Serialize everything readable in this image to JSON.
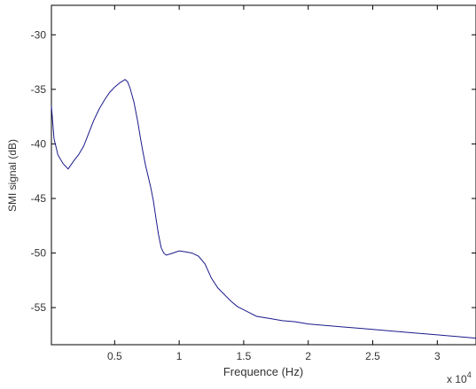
{
  "chart_data": {
    "type": "line",
    "title": "",
    "xlabel": "Frequence (Hz)",
    "ylabel": "SMI signal (dB)",
    "x_multiplier_label": "x 10",
    "x_multiplier_exponent": "4",
    "xlim": [
      0.01,
      3.3
    ],
    "ylim": [
      -58.4,
      -27.3
    ],
    "grid": false,
    "legend": "none",
    "line_color": "#1a1a8c",
    "x_ticks": [
      {
        "value": 0.5,
        "label": "0.5"
      },
      {
        "value": 1,
        "label": "1"
      },
      {
        "value": 1.5,
        "label": "1.5"
      },
      {
        "value": 2,
        "label": "2"
      },
      {
        "value": 2.5,
        "label": "2.5"
      },
      {
        "value": 3,
        "label": "3"
      }
    ],
    "y_ticks": [
      {
        "value": -30,
        "label": "-30"
      },
      {
        "value": -35,
        "label": "-35"
      },
      {
        "value": -40,
        "label": "-40"
      },
      {
        "value": -45,
        "label": "-45"
      },
      {
        "value": -50,
        "label": "-50"
      },
      {
        "value": -55,
        "label": "-55"
      }
    ],
    "series": [
      {
        "x": [
          0.01,
          0.03,
          0.06,
          0.1,
          0.14,
          0.18,
          0.22,
          0.26,
          0.3,
          0.34,
          0.38,
          0.42,
          0.46,
          0.5,
          0.54,
          0.58,
          0.6,
          0.62,
          0.65,
          0.68,
          0.7,
          0.72,
          0.74,
          0.76,
          0.78,
          0.8,
          0.82,
          0.84,
          0.86,
          0.88,
          0.9,
          0.95,
          1.0,
          1.05,
          1.1,
          1.15,
          1.2,
          1.25,
          1.3,
          1.35,
          1.4,
          1.45,
          1.5,
          1.55,
          1.6,
          1.7,
          1.8,
          1.9,
          2.0,
          2.2,
          2.4,
          2.6,
          2.8,
          3.0,
          3.2,
          3.3
        ],
        "y": [
          -36.5,
          -39.5,
          -41.0,
          -41.8,
          -42.3,
          -41.6,
          -41.0,
          -40.2,
          -39.0,
          -37.8,
          -36.8,
          -36.0,
          -35.3,
          -34.8,
          -34.4,
          -34.1,
          -34.3,
          -34.9,
          -36.2,
          -38.0,
          -39.5,
          -40.8,
          -42.0,
          -43.0,
          -44.0,
          -45.2,
          -46.8,
          -48.3,
          -49.5,
          -50.0,
          -50.2,
          -50.0,
          -49.8,
          -49.9,
          -50.0,
          -50.3,
          -51.0,
          -52.3,
          -53.2,
          -53.8,
          -54.4,
          -54.9,
          -55.2,
          -55.5,
          -55.8,
          -56.0,
          -56.2,
          -56.3,
          -56.5,
          -56.7,
          -56.9,
          -57.1,
          -57.3,
          -57.5,
          -57.7,
          -57.8
        ]
      }
    ]
  }
}
